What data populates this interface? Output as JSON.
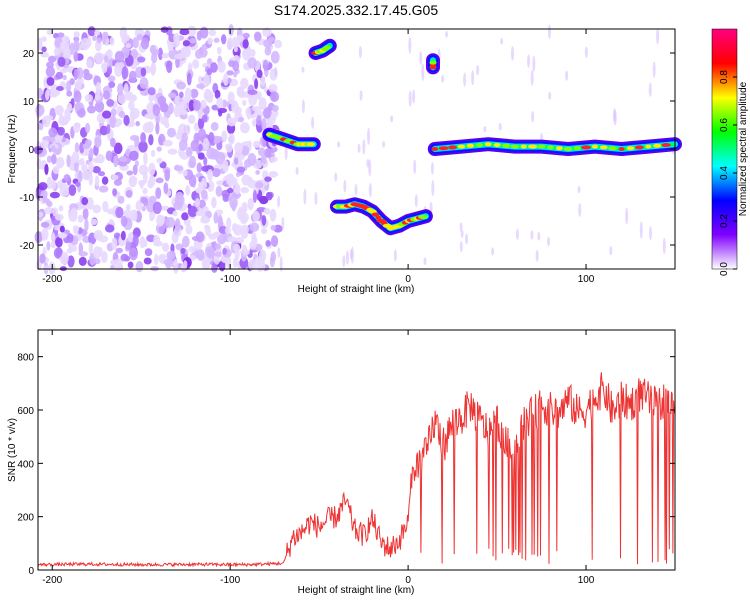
{
  "title": "S174.2025.332.17.45.G05",
  "chart_data": [
    {
      "type": "heatmap",
      "xlabel": "Height of straight line (km)",
      "ylabel": "Frequency (Hz)",
      "xlim": [
        -208,
        150
      ],
      "ylim": [
        -25,
        25
      ],
      "xticks": [
        -200,
        -100,
        0,
        100
      ],
      "xtick_labels": [
        "-200",
        "-100",
        "0",
        "100"
      ],
      "yticks": [
        20,
        10,
        0,
        -10,
        -20
      ],
      "ytick_labels": [
        "20",
        "10",
        "0",
        "-10",
        "-20"
      ],
      "colorbar": {
        "label": "Normalized spectral amplitude",
        "range": [
          0.0,
          1.0
        ],
        "ticks": [
          0.0,
          0.2,
          0.4,
          0.6,
          0.8
        ],
        "tick_labels": [
          "0.0",
          "0.2",
          "0.4",
          "0.6",
          "0.8"
        ],
        "colormap": [
          "#ffffff",
          "#8000ff",
          "#0000ff",
          "#00ffff",
          "#00ff00",
          "#ffff00",
          "#ff0000",
          "#ff0080"
        ]
      },
      "noise_region": {
        "x": [
          -208,
          -73
        ],
        "frequency": [
          -25,
          25
        ],
        "amplitude": 0.3
      },
      "tracks": [
        {
          "x": [
            -78,
            -70,
            -62,
            -58,
            -53
          ],
          "frequency": [
            3,
            2,
            1,
            1,
            1
          ]
        },
        {
          "x": [
            -52,
            -48,
            -44
          ],
          "frequency": [
            20,
            20.5,
            21.5
          ]
        },
        {
          "x": [
            14,
            14
          ],
          "frequency": [
            17,
            18.5
          ]
        },
        {
          "x": [
            -40,
            -35,
            -30,
            -25,
            -20,
            -15,
            -10,
            -5,
            0,
            5,
            10
          ],
          "frequency": [
            -12,
            -12,
            -11.5,
            -12,
            -13,
            -15,
            -16.5,
            -16,
            -15,
            -14.5,
            -14
          ]
        },
        {
          "x": [
            15,
            30,
            45,
            60,
            75,
            90,
            105,
            120,
            135,
            150
          ],
          "frequency": [
            0,
            0.5,
            1,
            0.5,
            0.5,
            0,
            0.5,
            0,
            0.5,
            1
          ]
        }
      ]
    },
    {
      "type": "line",
      "xlabel": "Height of straight line (km)",
      "ylabel": "SNR (10 * v/v)",
      "xlim": [
        -208,
        150
      ],
      "ylim": [
        0,
        900
      ],
      "xticks": [
        -200,
        -100,
        0,
        100
      ],
      "xtick_labels": [
        "-200",
        "-100",
        "0",
        "100"
      ],
      "yticks": [
        0,
        200,
        400,
        600,
        800
      ],
      "ytick_labels": [
        "0",
        "200",
        "400",
        "600",
        "800"
      ],
      "series": [
        {
          "name": "SNR",
          "color": "#ee3333",
          "x": [
            -208,
            -180,
            -150,
            -120,
            -90,
            -70,
            -65,
            -60,
            -55,
            -50,
            -45,
            -40,
            -35,
            -30,
            -25,
            -20,
            -15,
            -10,
            -5,
            0,
            2,
            5,
            10,
            15,
            20,
            25,
            30,
            35,
            40,
            45,
            50,
            55,
            60,
            65,
            70,
            75,
            80,
            85,
            90,
            95,
            100,
            105,
            110,
            115,
            120,
            125,
            130,
            135,
            140,
            145,
            150
          ],
          "values": [
            20,
            22,
            20,
            21,
            20,
            25,
            120,
            140,
            180,
            160,
            190,
            200,
            260,
            150,
            130,
            190,
            100,
            80,
            110,
            180,
            350,
            400,
            430,
            560,
            470,
            550,
            570,
            620,
            560,
            520,
            560,
            470,
            450,
            560,
            580,
            620,
            600,
            590,
            640,
            590,
            600,
            650,
            680,
            590,
            640,
            620,
            660,
            640,
            610,
            650,
            600
          ]
        }
      ]
    }
  ]
}
